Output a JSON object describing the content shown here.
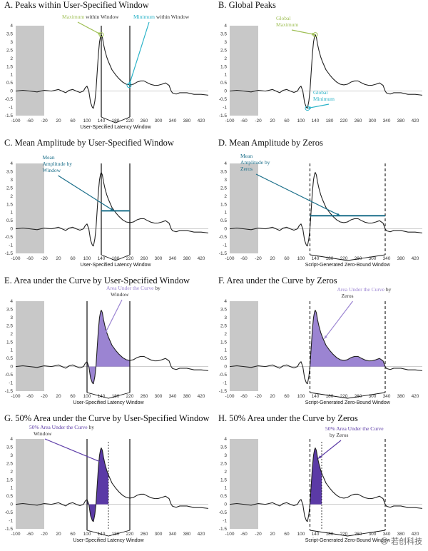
{
  "chart_data": [
    {
      "id": "A",
      "type": "line",
      "title": "A. Peaks within User-Specified Window",
      "xlabel": "User-Specified Latency Window",
      "xlim": [
        -100,
        440
      ],
      "ylim": [
        -1.5,
        4
      ],
      "x_ticks": [
        -100,
        -60,
        -20,
        20,
        60,
        100,
        140,
        180,
        220,
        260,
        300,
        340,
        380,
        420
      ],
      "window": [
        140,
        220
      ],
      "zero_window": null,
      "half_marker": null,
      "fill": null,
      "mean_amplitude": null,
      "annotations": [
        {
          "parts": [
            [
              "Maximum",
              "#9fbf55"
            ],
            [
              " within Window",
              "#333333"
            ]
          ],
          "point": [
            140,
            3.45
          ],
          "color": "#9fbf55"
        },
        {
          "parts": [
            [
              "Minimum",
              "#2ab3c8"
            ],
            [
              " within Window",
              "#333333"
            ]
          ],
          "point": [
            218,
            0.35
          ],
          "color": "#2ab3c8"
        }
      ]
    },
    {
      "id": "B",
      "type": "line",
      "title": "B. Global Peaks",
      "xlabel": "",
      "xlim": [
        -100,
        440
      ],
      "ylim": [
        -1.5,
        4
      ],
      "x_ticks": [
        -100,
        -60,
        -20,
        20,
        60,
        100,
        140,
        180,
        220,
        260,
        300,
        340,
        380,
        420
      ],
      "window": null,
      "zero_window": null,
      "half_marker": null,
      "fill": null,
      "mean_amplitude": null,
      "annotations": [
        {
          "lines": [
            "Global",
            "Maximum"
          ],
          "point": [
            140,
            3.45
          ],
          "color": "#9fbf55"
        },
        {
          "lines": [
            "Global",
            "Minimum"
          ],
          "point": [
            118,
            -1.05
          ],
          "color": "#2ab3c8"
        }
      ]
    },
    {
      "id": "C",
      "type": "line",
      "title": "C. Mean Amplitude by User-Specified Window",
      "xlabel": "User-Specified Latency Window",
      "xlim": [
        -100,
        440
      ],
      "ylim": [
        -1.5,
        4
      ],
      "x_ticks": [
        -100,
        -60,
        -20,
        20,
        60,
        100,
        140,
        180,
        220,
        260,
        300,
        340,
        380,
        420
      ],
      "window": [
        140,
        220
      ],
      "zero_window": null,
      "half_marker": null,
      "fill": null,
      "mean_amplitude": {
        "value": 1.1,
        "range": [
          140,
          220
        ]
      },
      "annotations": [
        {
          "lines": [
            "Mean",
            "Amplitude by",
            "Window"
          ],
          "point": [
            175,
            1.1
          ],
          "color": "#1b6f8a"
        }
      ]
    },
    {
      "id": "D",
      "type": "line",
      "title": "D. Mean Amplitude by Zeros",
      "xlabel": "Script-Generated Zero-Bound Window",
      "xlim": [
        -100,
        440
      ],
      "ylim": [
        -1.5,
        4
      ],
      "x_ticks": [
        -100,
        -60,
        -20,
        20,
        60,
        100,
        140,
        180,
        220,
        260,
        300,
        340,
        380,
        420
      ],
      "window": null,
      "zero_window": [
        125,
        336
      ],
      "half_marker": null,
      "fill": null,
      "mean_amplitude": {
        "value": 0.8,
        "range": [
          125,
          336
        ]
      },
      "annotations": [
        {
          "lines": [
            "Mean",
            "Amplitude by",
            "Zeros"
          ],
          "point": [
            210,
            0.8
          ],
          "color": "#1b6f8a"
        }
      ]
    },
    {
      "id": "E",
      "type": "area",
      "title": "E. Area under the Curve by User-Specified Window",
      "xlabel": "User-Specified Latency Window",
      "xlim": [
        -100,
        440
      ],
      "ylim": [
        -1.5,
        4
      ],
      "x_ticks": [
        -100,
        -60,
        -20,
        20,
        60,
        100,
        140,
        180,
        220,
        260,
        300,
        340,
        380,
        420
      ],
      "window": [
        100,
        220
      ],
      "zero_window": null,
      "half_marker": null,
      "fill": {
        "range": [
          100,
          220
        ],
        "color": "#9b84d2"
      },
      "mean_amplitude": null,
      "annotations": [
        {
          "parts": [
            [
              "Area Under the Curve",
              "#9b84d2"
            ],
            [
              " by",
              "#333333"
            ]
          ],
          "lines2": [
            "Window"
          ],
          "point": [
            150,
            2.0
          ],
          "color": "#9b84d2"
        }
      ]
    },
    {
      "id": "F",
      "type": "area",
      "title": "F. Area under the Curve by Zeros",
      "xlabel": "Script-Generated Zero-Bound Window",
      "xlim": [
        -100,
        440
      ],
      "ylim": [
        -1.5,
        4
      ],
      "x_ticks": [
        -100,
        -60,
        -20,
        20,
        60,
        100,
        140,
        180,
        220,
        260,
        300,
        340,
        380,
        420
      ],
      "window": null,
      "zero_window": [
        125,
        336
      ],
      "half_marker": null,
      "fill": {
        "range": [
          125,
          336
        ],
        "color": "#9b84d2"
      },
      "mean_amplitude": null,
      "annotations": [
        {
          "parts": [
            [
              "Area Under the Curve",
              "#9b84d2"
            ],
            [
              " by",
              "#333333"
            ]
          ],
          "lines2": [
            "Zeros"
          ],
          "point": [
            165,
            1.7
          ],
          "color": "#9b84d2"
        }
      ]
    },
    {
      "id": "G",
      "type": "area",
      "title": "G. 50% Area under the Curve by User-Specified Window",
      "xlabel": "User-Specified Latency Window",
      "xlim": [
        -100,
        440
      ],
      "ylim": [
        -1.5,
        4
      ],
      "x_ticks": [
        -100,
        -60,
        -20,
        20,
        60,
        100,
        140,
        180,
        220,
        260,
        300,
        340,
        380,
        420
      ],
      "window": [
        100,
        220
      ],
      "zero_window": null,
      "half_marker": 160,
      "fill": {
        "range": [
          100,
          160
        ],
        "color": "#5b3aa6"
      },
      "mean_amplitude": null,
      "annotations": [
        {
          "parts": [
            [
              "50% Area Under the Curve",
              "#5b3aa6"
            ],
            [
              " by",
              "#333333"
            ]
          ],
          "lines2": [
            "Window"
          ],
          "point": [
            148,
            2.5
          ],
          "color": "#5b3aa6"
        }
      ]
    },
    {
      "id": "H",
      "type": "area",
      "title": "H. 50% Area under the Curve by Zeros",
      "xlabel": "Script-Generated Zero-Bound Window",
      "xlim": [
        -100,
        440
      ],
      "ylim": [
        -1.5,
        4
      ],
      "x_ticks": [
        -100,
        -60,
        -20,
        20,
        60,
        100,
        140,
        180,
        220,
        260,
        300,
        340,
        380,
        420
      ],
      "window": null,
      "zero_window": [
        125,
        336
      ],
      "half_marker": 158,
      "fill": {
        "range": [
          125,
          158
        ],
        "color": "#5b3aa6"
      },
      "mean_amplitude": null,
      "annotations": [
        {
          "lines": [
            "50% Area Under the Curve"
          ],
          "lines2": [
            "by Zeros"
          ],
          "point": [
            148,
            2.8
          ],
          "color": "#5b3aa6"
        }
      ]
    }
  ],
  "waveform": {
    "x": [
      -100,
      -80,
      -60,
      -40,
      -20,
      0,
      10,
      20,
      30,
      40,
      50,
      60,
      70,
      80,
      90,
      95,
      100,
      105,
      110,
      115,
      118,
      122,
      125,
      128,
      132,
      135,
      138,
      140,
      143,
      146,
      150,
      155,
      160,
      170,
      180,
      190,
      200,
      210,
      220,
      230,
      240,
      250,
      260,
      270,
      280,
      290,
      300,
      310,
      320,
      330,
      336,
      340,
      350,
      360,
      380,
      400,
      420,
      440
    ],
    "y": [
      0,
      0.05,
      0,
      -0.05,
      0.05,
      0,
      0.05,
      0.1,
      0.0,
      -0.1,
      0.05,
      0.1,
      0.0,
      -0.08,
      0.0,
      0.2,
      0.3,
      0.0,
      -0.7,
      -1.0,
      -1.05,
      -0.6,
      0.0,
      1.0,
      2.3,
      3.0,
      3.35,
      3.45,
      3.3,
      2.9,
      2.5,
      2.1,
      1.8,
      1.3,
      1.0,
      0.75,
      0.55,
      0.42,
      0.38,
      0.42,
      0.55,
      0.62,
      0.62,
      0.5,
      0.4,
      0.35,
      0.36,
      0.42,
      0.5,
      0.35,
      0.0,
      -0.12,
      -0.18,
      -0.1,
      -0.1,
      -0.2,
      -0.2,
      -0.25
    ]
  },
  "baseline_shade": {
    "range": [
      -100,
      -20
    ],
    "color": "#c8c8c8"
  },
  "y_ticks": [
    -1.5,
    -1,
    -0.5,
    0,
    0.5,
    1,
    1.5,
    2,
    2.5,
    3,
    3.5,
    4
  ],
  "y_tick_labels": [
    "-1.5",
    "-1",
    "-0.5",
    "0",
    "0.5",
    "1",
    "1.5",
    "2",
    "2.5",
    "3",
    "3.5",
    "4"
  ],
  "watermark": "☺ 若创科技"
}
